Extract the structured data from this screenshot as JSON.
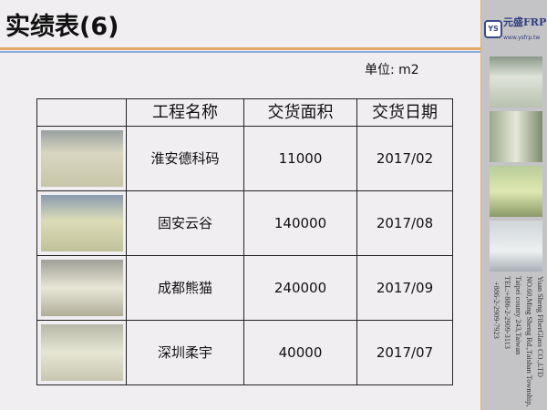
{
  "header": {
    "title": "实绩表(6)",
    "unit": "单位:  m2"
  },
  "brand": {
    "logo_mark": "YS",
    "name": "元盛FRP",
    "url": "www.ysfrp.tw",
    "address_lines": [
      "Yuan Sheng FiberGlass CO.,LTD",
      "NO.60,Ming Sheng Rd.,Taishan Township,",
      "Taipei county 243,Taiwan",
      "TEL:+886-2-2909-3113",
      "+886-2-2909-7923"
    ]
  },
  "table": {
    "columns": [
      "",
      "工程名称",
      "交货面积",
      "交货日期"
    ],
    "rows": [
      {
        "name": "淮安德科码",
        "area": "11000",
        "date": "2017/02"
      },
      {
        "name": "固安云谷",
        "area": "140000",
        "date": "2017/08"
      },
      {
        "name": "成都熊猫",
        "area": "240000",
        "date": "2017/09"
      },
      {
        "name": "深圳柔宇",
        "area": "40000",
        "date": "2017/07"
      }
    ]
  },
  "colors": {
    "accent_orange": "#e2a865",
    "accent_blue": "#8aaee0",
    "sidebar": "#c4c3c6"
  }
}
